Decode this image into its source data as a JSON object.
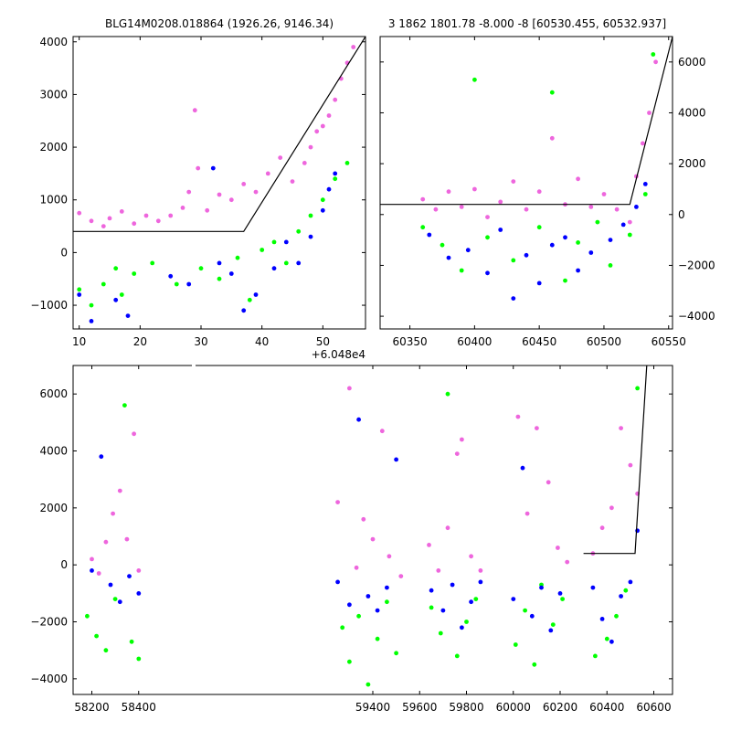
{
  "titles": {
    "left": "BLG14M0208.018864 (1926.26, 9146.34)",
    "right": "3 1862 1801.78 -8.000 -8 [60530.455, 60532.937]"
  },
  "colors": {
    "magenta": "#ee66dd",
    "green": "#00ff00",
    "blue": "#0000ff",
    "model": "#000000"
  },
  "chart_data": [
    {
      "type": "scatter",
      "panel": "top-left",
      "title": "BLG14M0208.018864 (1926.26, 9146.34)",
      "x_offset_label": "+6.048e4",
      "xlim": [
        9,
        57
      ],
      "ylim": [
        -1450,
        4100
      ],
      "xticks": [
        10,
        20,
        30,
        40,
        50
      ],
      "yticks": [
        -1000,
        0,
        1000,
        2000,
        3000,
        4000
      ],
      "ytick_side": "left",
      "model": [
        [
          9,
          400
        ],
        [
          37,
          400
        ],
        [
          57,
          4100
        ]
      ],
      "series": [
        {
          "color": "magenta",
          "points": [
            [
              10,
              750
            ],
            [
              12,
              600
            ],
            [
              14,
              500
            ],
            [
              15,
              650
            ],
            [
              17,
              780
            ],
            [
              19,
              550
            ],
            [
              21,
              700
            ],
            [
              23,
              600
            ],
            [
              25,
              700
            ],
            [
              27,
              850
            ],
            [
              28,
              1150
            ],
            [
              29,
              2700
            ],
            [
              29.5,
              1600
            ],
            [
              31,
              800
            ],
            [
              33,
              1100
            ],
            [
              35,
              1000
            ],
            [
              37,
              1300
            ],
            [
              39,
              1150
            ],
            [
              41,
              1500
            ],
            [
              43,
              1800
            ],
            [
              45,
              1350
            ],
            [
              47,
              1700
            ],
            [
              48,
              2000
            ],
            [
              49,
              2300
            ],
            [
              50,
              2400
            ],
            [
              51,
              2600
            ],
            [
              52,
              2900
            ],
            [
              53,
              3300
            ],
            [
              54,
              3600
            ],
            [
              55,
              3900
            ]
          ]
        },
        {
          "color": "green",
          "points": [
            [
              10,
              -700
            ],
            [
              12,
              -1000
            ],
            [
              14,
              -600
            ],
            [
              16,
              -300
            ],
            [
              17,
              -800
            ],
            [
              19,
              -400
            ],
            [
              22,
              -200
            ],
            [
              26,
              -600
            ],
            [
              30,
              -300
            ],
            [
              33,
              -500
            ],
            [
              36,
              -100
            ],
            [
              38,
              -900
            ],
            [
              40,
              50
            ],
            [
              42,
              200
            ],
            [
              44,
              -200
            ],
            [
              46,
              400
            ],
            [
              48,
              700
            ],
            [
              50,
              1000
            ],
            [
              52,
              1400
            ],
            [
              54,
              1700
            ]
          ]
        },
        {
          "color": "blue",
          "points": [
            [
              10,
              -800
            ],
            [
              12,
              -1300
            ],
            [
              16,
              -900
            ],
            [
              18,
              -1200
            ],
            [
              25,
              -450
            ],
            [
              28,
              -600
            ],
            [
              32,
              1600
            ],
            [
              33,
              -200
            ],
            [
              35,
              -400
            ],
            [
              37,
              -1100
            ],
            [
              39,
              -800
            ],
            [
              42,
              -300
            ],
            [
              44,
              200
            ],
            [
              46,
              -200
            ],
            [
              48,
              300
            ],
            [
              50,
              800
            ],
            [
              51,
              1200
            ],
            [
              52,
              1500
            ]
          ]
        }
      ]
    },
    {
      "type": "scatter",
      "panel": "top-right",
      "title": "3 1862 1801.78 -8.000 -8 [60530.455, 60532.937]",
      "xlim": [
        60327,
        60553
      ],
      "ylim": [
        -4500,
        7000
      ],
      "xticks": [
        60350,
        60400,
        60450,
        60500,
        60550
      ],
      "yticks": [
        -4000,
        -2000,
        0,
        2000,
        4000,
        6000
      ],
      "ytick_side": "right",
      "model": [
        [
          60327,
          400
        ],
        [
          60520,
          400
        ],
        [
          60553,
          7000
        ]
      ],
      "series": [
        {
          "color": "magenta",
          "points": [
            [
              60360,
              600
            ],
            [
              60370,
              200
            ],
            [
              60380,
              900
            ],
            [
              60390,
              300
            ],
            [
              60400,
              1000
            ],
            [
              60410,
              -100
            ],
            [
              60420,
              500
            ],
            [
              60430,
              1300
            ],
            [
              60440,
              200
            ],
            [
              60450,
              900
            ],
            [
              60460,
              3000
            ],
            [
              60470,
              400
            ],
            [
              60480,
              1400
            ],
            [
              60490,
              300
            ],
            [
              60500,
              800
            ],
            [
              60510,
              200
            ],
            [
              60520,
              -300
            ],
            [
              60525,
              1500
            ],
            [
              60530,
              2800
            ],
            [
              60535,
              4000
            ],
            [
              60540,
              6000
            ]
          ]
        },
        {
          "color": "green",
          "points": [
            [
              60360,
              -500
            ],
            [
              60375,
              -1200
            ],
            [
              60390,
              -2200
            ],
            [
              60400,
              5300
            ],
            [
              60410,
              -900
            ],
            [
              60430,
              -1800
            ],
            [
              60450,
              -500
            ],
            [
              60460,
              4800
            ],
            [
              60470,
              -2600
            ],
            [
              60480,
              -1100
            ],
            [
              60495,
              -300
            ],
            [
              60505,
              -2000
            ],
            [
              60520,
              -800
            ],
            [
              60532,
              800
            ],
            [
              60538,
              6300
            ]
          ]
        },
        {
          "color": "blue",
          "points": [
            [
              60365,
              -800
            ],
            [
              60380,
              -1700
            ],
            [
              60395,
              -1400
            ],
            [
              60410,
              -2300
            ],
            [
              60420,
              -600
            ],
            [
              60430,
              -3300
            ],
            [
              60440,
              -1600
            ],
            [
              60450,
              -2700
            ],
            [
              60460,
              -1200
            ],
            [
              60470,
              -900
            ],
            [
              60480,
              -2200
            ],
            [
              60490,
              -1500
            ],
            [
              60505,
              -1000
            ],
            [
              60515,
              -400
            ],
            [
              60525,
              300
            ],
            [
              60532,
              1200
            ]
          ]
        }
      ]
    },
    {
      "type": "scatter",
      "panel": "bottom",
      "xlim": [
        58120,
        60680
      ],
      "ylim": [
        -4550,
        7000
      ],
      "xticks": [
        58200,
        58400,
        59400,
        59600,
        59800,
        60000,
        60200,
        60400,
        60600
      ],
      "yticks": [
        -4000,
        -2000,
        0,
        2000,
        4000,
        6000
      ],
      "ytick_side": "left",
      "model": [
        [
          60300,
          400
        ],
        [
          60520,
          400
        ],
        [
          60570,
          7000
        ]
      ],
      "series": [
        {
          "color": "magenta",
          "points": [
            [
              58200,
              200
            ],
            [
              58230,
              -300
            ],
            [
              58260,
              800
            ],
            [
              58290,
              1800
            ],
            [
              58320,
              2600
            ],
            [
              58350,
              900
            ],
            [
              58380,
              4600
            ],
            [
              58400,
              -200
            ],
            [
              59250,
              2200
            ],
            [
              59300,
              6200
            ],
            [
              59330,
              -100
            ],
            [
              59360,
              1600
            ],
            [
              59400,
              900
            ],
            [
              59440,
              4700
            ],
            [
              59470,
              300
            ],
            [
              59520,
              -400
            ],
            [
              59640,
              700
            ],
            [
              59680,
              -200
            ],
            [
              59720,
              1300
            ],
            [
              59760,
              3900
            ],
            [
              59780,
              4400
            ],
            [
              59820,
              300
            ],
            [
              59860,
              -200
            ],
            [
              60020,
              5200
            ],
            [
              60060,
              1800
            ],
            [
              60100,
              4800
            ],
            [
              60150,
              2900
            ],
            [
              60190,
              600
            ],
            [
              60230,
              100
            ],
            [
              60340,
              400
            ],
            [
              60380,
              1300
            ],
            [
              60420,
              2000
            ],
            [
              60460,
              4800
            ],
            [
              60500,
              3500
            ],
            [
              60530,
              2500
            ]
          ]
        },
        {
          "color": "green",
          "points": [
            [
              58180,
              -1800
            ],
            [
              58220,
              -2500
            ],
            [
              58260,
              -3000
            ],
            [
              58300,
              -1200
            ],
            [
              58340,
              5600
            ],
            [
              58370,
              -2700
            ],
            [
              58400,
              -3300
            ],
            [
              59270,
              -2200
            ],
            [
              59300,
              -3400
            ],
            [
              59340,
              -1800
            ],
            [
              59380,
              -4200
            ],
            [
              59420,
              -2600
            ],
            [
              59460,
              -1300
            ],
            [
              59500,
              -3100
            ],
            [
              59650,
              -1500
            ],
            [
              59690,
              -2400
            ],
            [
              59720,
              6000
            ],
            [
              59760,
              -3200
            ],
            [
              59800,
              -2000
            ],
            [
              59840,
              -1200
            ],
            [
              60010,
              -2800
            ],
            [
              60050,
              -1600
            ],
            [
              60090,
              -3500
            ],
            [
              60120,
              -700
            ],
            [
              60170,
              -2100
            ],
            [
              60210,
              -1200
            ],
            [
              60350,
              -3200
            ],
            [
              60400,
              -2600
            ],
            [
              60440,
              -1800
            ],
            [
              60480,
              -900
            ],
            [
              60530,
              6200
            ]
          ]
        },
        {
          "color": "blue",
          "points": [
            [
              58200,
              -200
            ],
            [
              58240,
              3800
            ],
            [
              58280,
              -700
            ],
            [
              58320,
              -1300
            ],
            [
              58360,
              -400
            ],
            [
              58400,
              -1000
            ],
            [
              59250,
              -600
            ],
            [
              59300,
              -1400
            ],
            [
              59340,
              5100
            ],
            [
              59380,
              -1100
            ],
            [
              59420,
              -1600
            ],
            [
              59460,
              -800
            ],
            [
              59500,
              3700
            ],
            [
              59650,
              -900
            ],
            [
              59700,
              -1600
            ],
            [
              59740,
              -700
            ],
            [
              59780,
              -2200
            ],
            [
              59820,
              -1300
            ],
            [
              59860,
              -600
            ],
            [
              60000,
              -1200
            ],
            [
              60040,
              3400
            ],
            [
              60080,
              -1800
            ],
            [
              60120,
              -800
            ],
            [
              60160,
              -2300
            ],
            [
              60200,
              -1000
            ],
            [
              60340,
              -800
            ],
            [
              60380,
              -1900
            ],
            [
              60420,
              -2700
            ],
            [
              60460,
              -1100
            ],
            [
              60500,
              -600
            ],
            [
              60530,
              1200
            ]
          ]
        }
      ]
    }
  ]
}
